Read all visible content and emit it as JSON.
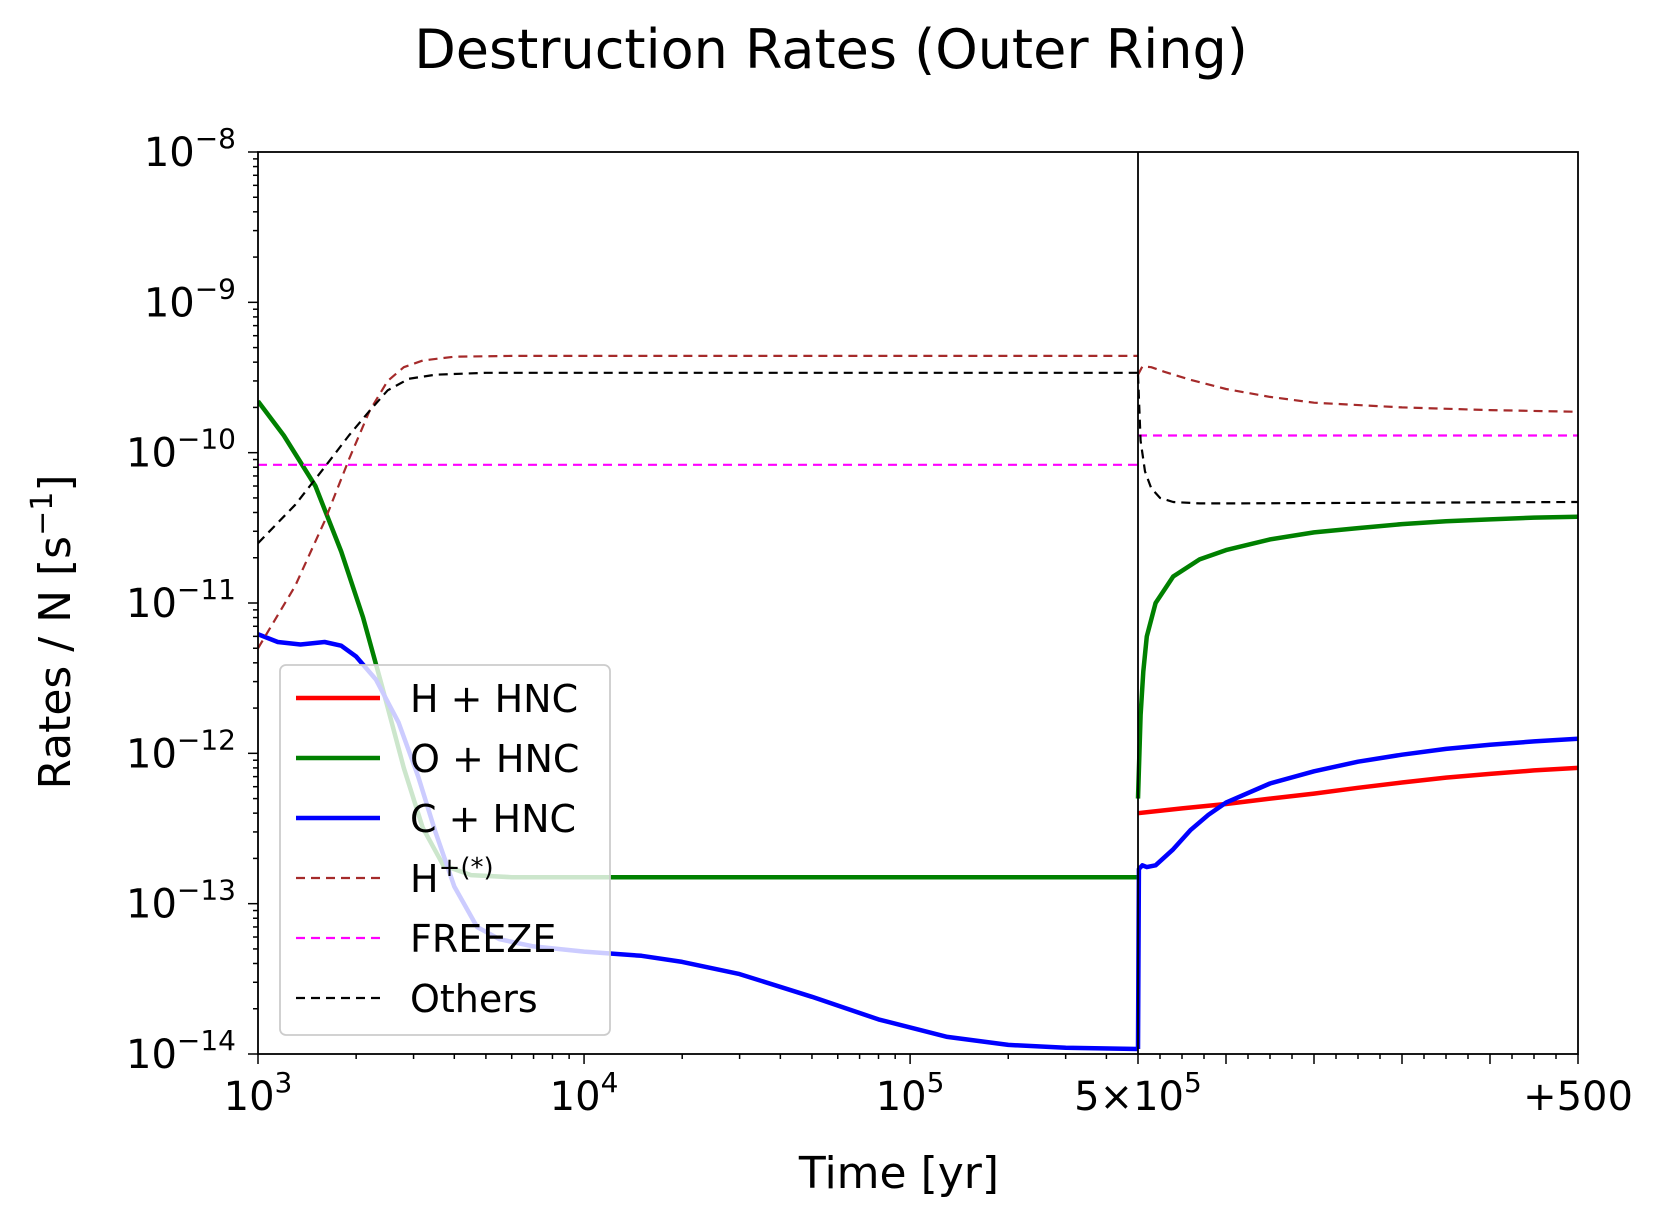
{
  "chart_data": {
    "type": "line",
    "title": "Destruction Rates (Outer Ring)",
    "xlabel": "Time [yr]",
    "ylabel": "Rates / N [s",
    "ylabel_sup": "−1",
    "ylabel_end": "]",
    "y_scale": "log",
    "ylim": [
      1e-14,
      1e-08
    ],
    "grid": false,
    "legend_position": "lower-left",
    "panels": [
      {
        "name": "left",
        "x_scale": "log",
        "xlim": [
          1000,
          500000
        ]
      },
      {
        "name": "right",
        "x_scale": "linear",
        "xlim": [
          0,
          500
        ],
        "x_unit_note": "years after 5×10^5"
      }
    ],
    "x_tick_labels": [
      {
        "base": "10",
        "exp": "3",
        "panel": "left",
        "value": 1000
      },
      {
        "base": "10",
        "exp": "4",
        "panel": "left",
        "value": 10000
      },
      {
        "base": "10",
        "exp": "5",
        "panel": "left",
        "value": 100000
      },
      {
        "base": "5×10",
        "exp": "5",
        "panel": "left",
        "value": 500000
      },
      {
        "base": "+500",
        "exp": "",
        "panel": "right",
        "value": 500
      }
    ],
    "y_tick_labels": [
      {
        "base": "10",
        "exp": "−8",
        "value": 1e-08
      },
      {
        "base": "10",
        "exp": "−9",
        "value": 1e-09
      },
      {
        "base": "10",
        "exp": "−10",
        "value": 1e-10
      },
      {
        "base": "10",
        "exp": "−11",
        "value": 1e-11
      },
      {
        "base": "10",
        "exp": "−12",
        "value": 1e-12
      },
      {
        "base": "10",
        "exp": "−13",
        "value": 1e-13
      },
      {
        "base": "10",
        "exp": "−14",
        "value": 1e-14
      }
    ],
    "series": [
      {
        "name": "H + HNC",
        "color": "#ff0000",
        "style": "solid",
        "left": [],
        "right": [
          [
            0,
            4e-13
          ],
          [
            50,
            4.3e-13
          ],
          [
            100,
            4.6e-13
          ],
          [
            150,
            5e-13
          ],
          [
            200,
            5.4e-13
          ],
          [
            250,
            5.9e-13
          ],
          [
            300,
            6.4e-13
          ],
          [
            350,
            6.9e-13
          ],
          [
            400,
            7.3e-13
          ],
          [
            450,
            7.7e-13
          ],
          [
            500,
            8e-13
          ]
        ]
      },
      {
        "name": "O + HNC",
        "color": "#008000",
        "style": "solid",
        "left": [
          [
            1000,
            2.2e-10
          ],
          [
            1200,
            1.3e-10
          ],
          [
            1500,
            6e-11
          ],
          [
            1800,
            2.2e-11
          ],
          [
            2100,
            8e-12
          ],
          [
            2400,
            2.8e-12
          ],
          [
            2800,
            8e-13
          ],
          [
            3200,
            3.2e-13
          ],
          [
            3700,
            1.8e-13
          ],
          [
            4500,
            1.55e-13
          ],
          [
            6000,
            1.5e-13
          ],
          [
            500000,
            1.5e-13
          ]
        ],
        "right": [
          [
            0,
            5e-13
          ],
          [
            3,
            1.8e-12
          ],
          [
            6,
            3.5e-12
          ],
          [
            10,
            6e-12
          ],
          [
            20,
            1e-11
          ],
          [
            40,
            1.5e-11
          ],
          [
            70,
            1.95e-11
          ],
          [
            100,
            2.25e-11
          ],
          [
            150,
            2.65e-11
          ],
          [
            200,
            2.95e-11
          ],
          [
            250,
            3.15e-11
          ],
          [
            300,
            3.35e-11
          ],
          [
            350,
            3.5e-11
          ],
          [
            400,
            3.6e-11
          ],
          [
            450,
            3.7e-11
          ],
          [
            500,
            3.75e-11
          ]
        ]
      },
      {
        "name": "C + HNC",
        "color": "#0000ff",
        "style": "solid",
        "left": [
          [
            1000,
            6.2e-12
          ],
          [
            1150,
            5.5e-12
          ],
          [
            1350,
            5.3e-12
          ],
          [
            1600,
            5.5e-12
          ],
          [
            1800,
            5.2e-12
          ],
          [
            2000,
            4.4e-12
          ],
          [
            2300,
            3.1e-12
          ],
          [
            2700,
            1.6e-12
          ],
          [
            3100,
            7e-13
          ],
          [
            3500,
            3e-13
          ],
          [
            4000,
            1.3e-13
          ],
          [
            4700,
            7e-14
          ],
          [
            5500,
            5.8e-14
          ],
          [
            7000,
            5.2e-14
          ],
          [
            10000,
            4.8e-14
          ],
          [
            15000,
            4.5e-14
          ],
          [
            20000,
            4.1e-14
          ],
          [
            30000,
            3.4e-14
          ],
          [
            50000,
            2.4e-14
          ],
          [
            80000,
            1.7e-14
          ],
          [
            130000,
            1.3e-14
          ],
          [
            200000,
            1.15e-14
          ],
          [
            300000,
            1.1e-14
          ],
          [
            500000,
            1.08e-14
          ]
        ],
        "right": [
          [
            0,
            1.08e-14
          ],
          [
            1,
            1.7e-13
          ],
          [
            5,
            1.8e-13
          ],
          [
            10,
            1.75e-13
          ],
          [
            20,
            1.8e-13
          ],
          [
            40,
            2.3e-13
          ],
          [
            60,
            3.1e-13
          ],
          [
            80,
            3.9e-13
          ],
          [
            100,
            4.7e-13
          ],
          [
            150,
            6.3e-13
          ],
          [
            200,
            7.6e-13
          ],
          [
            250,
            8.8e-13
          ],
          [
            300,
            9.8e-13
          ],
          [
            350,
            1.07e-12
          ],
          [
            400,
            1.14e-12
          ],
          [
            450,
            1.2e-12
          ],
          [
            500,
            1.25e-12
          ]
        ]
      },
      {
        "name": "H+(*)",
        "label_base": "H",
        "label_sup": "+(*)",
        "color": "#a52a2a",
        "style": "dashed",
        "left": [
          [
            1000,
            5e-12
          ],
          [
            1300,
            1.3e-11
          ],
          [
            1600,
            3.5e-11
          ],
          [
            1900,
            9e-11
          ],
          [
            2200,
            1.9e-10
          ],
          [
            2500,
            3e-10
          ],
          [
            2800,
            3.7e-10
          ],
          [
            3200,
            4.1e-10
          ],
          [
            4000,
            4.35e-10
          ],
          [
            6000,
            4.4e-10
          ],
          [
            500000,
            4.4e-10
          ]
        ],
        "right": [
          [
            0,
            3.3e-10
          ],
          [
            5,
            3.75e-10
          ],
          [
            15,
            3.7e-10
          ],
          [
            30,
            3.45e-10
          ],
          [
            60,
            3.05e-10
          ],
          [
            100,
            2.65e-10
          ],
          [
            150,
            2.35e-10
          ],
          [
            200,
            2.15e-10
          ],
          [
            300,
            2e-10
          ],
          [
            400,
            1.92e-10
          ],
          [
            500,
            1.87e-10
          ]
        ]
      },
      {
        "name": "FREEZE",
        "color": "#ff00ff",
        "style": "dashed",
        "left": [
          [
            1000,
            8.3e-11
          ],
          [
            500000,
            8.3e-11
          ]
        ],
        "right": [
          [
            0,
            1.3e-10
          ],
          [
            500,
            1.3e-10
          ]
        ]
      },
      {
        "name": "Others",
        "color": "#000000",
        "style": "dashed",
        "left": [
          [
            1000,
            2.5e-11
          ],
          [
            1300,
            4.5e-11
          ],
          [
            1600,
            8e-11
          ],
          [
            1900,
            1.3e-10
          ],
          [
            2200,
            1.9e-10
          ],
          [
            2500,
            2.6e-10
          ],
          [
            2900,
            3.1e-10
          ],
          [
            3500,
            3.3e-10
          ],
          [
            5000,
            3.4e-10
          ],
          [
            500000,
            3.4e-10
          ]
        ],
        "right": [
          [
            0,
            3.3e-10
          ],
          [
            3,
            1.2e-10
          ],
          [
            8,
            7.5e-11
          ],
          [
            15,
            5.8e-11
          ],
          [
            25,
            5e-11
          ],
          [
            40,
            4.7e-11
          ],
          [
            70,
            4.6e-11
          ],
          [
            100,
            4.6e-11
          ],
          [
            500,
            4.7e-11
          ]
        ]
      }
    ]
  }
}
